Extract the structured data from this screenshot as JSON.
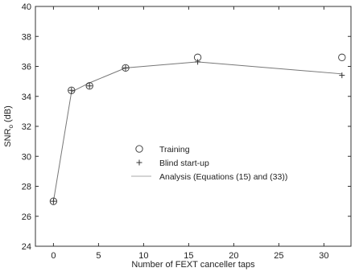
{
  "chart_data": {
    "type": "line",
    "title": "",
    "xlabel": "Number of FEXT canceller taps",
    "ylabel_main": "SNR",
    "ylabel_sub": "o",
    "ylabel_unit": " (dB)",
    "xlim": [
      -2,
      33
    ],
    "ylim": [
      24,
      40
    ],
    "xticks": [
      0,
      5,
      10,
      15,
      20,
      25,
      30
    ],
    "yticks": [
      24,
      26,
      28,
      30,
      32,
      34,
      36,
      38,
      40
    ],
    "grid": false,
    "legend_position": "center",
    "series": [
      {
        "name": "Training",
        "marker": "circle",
        "x": [
          0,
          2,
          4,
          8,
          16,
          32
        ],
        "y": [
          27.0,
          34.4,
          34.7,
          35.9,
          36.6,
          36.6
        ]
      },
      {
        "name": "Blind start-up",
        "marker": "plus",
        "x": [
          0,
          2,
          4,
          8,
          16,
          32
        ],
        "y": [
          27.0,
          34.4,
          34.7,
          35.9,
          36.3,
          35.4
        ]
      },
      {
        "name": "Analysis (Equations (15) and (33))",
        "marker": "line",
        "x": [
          0,
          2,
          4,
          8,
          16,
          32
        ],
        "y": [
          27.0,
          34.3,
          34.9,
          35.9,
          36.3,
          35.5
        ]
      }
    ],
    "colors": {
      "axis": "#333333",
      "line": "#777777",
      "marker": "#333333"
    }
  }
}
